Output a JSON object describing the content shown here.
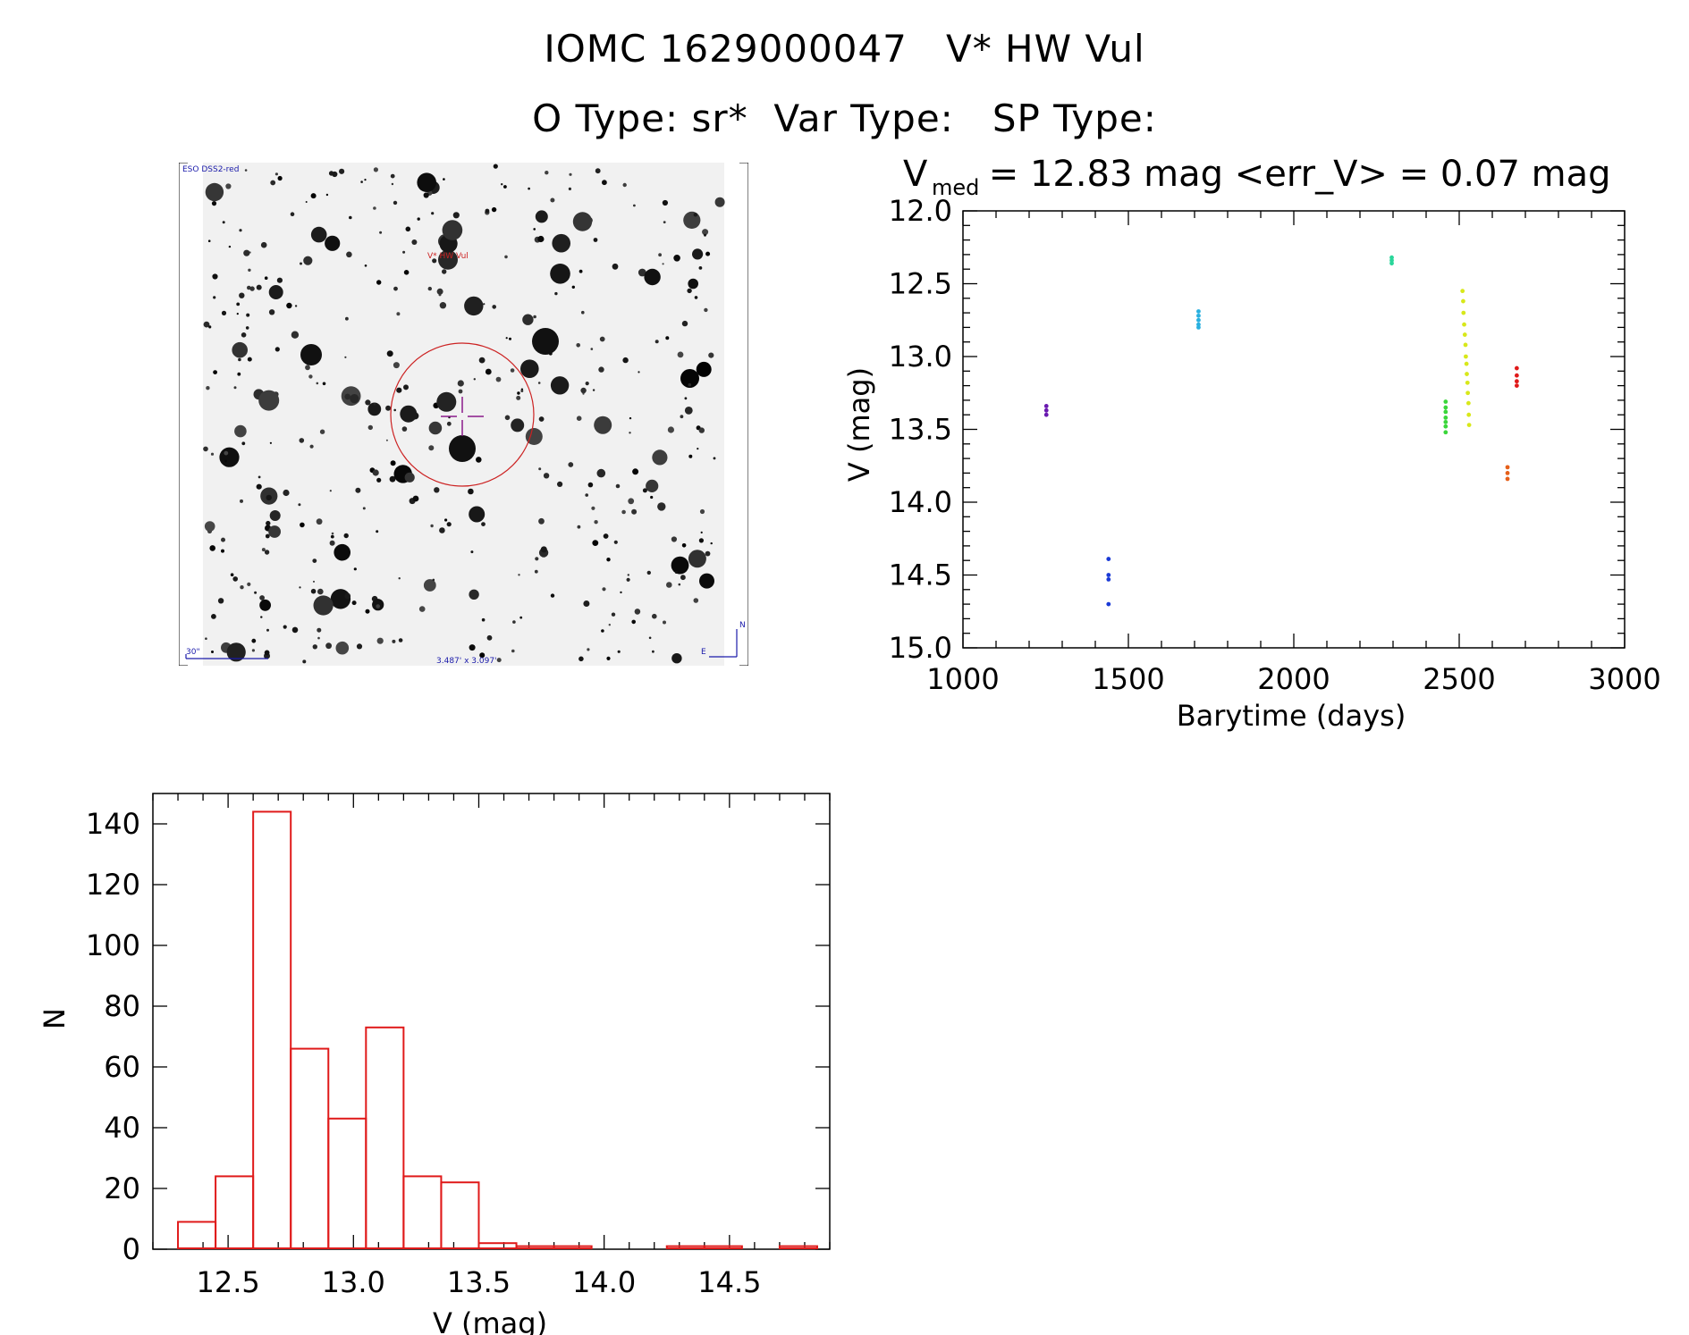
{
  "header": {
    "line1": "IOMC 1629000047   V* HW Vul",
    "line2": "O Type: sr*  Var Type:   SP Type:"
  },
  "finder_chart": {
    "survey_label": "ESO DSS2-red",
    "target_label": "V* HW Vul",
    "scale_label": "30\"",
    "size_label": "3.487' x 3.097'",
    "north_label": "N",
    "east_label": "E",
    "colors": {
      "circle": "#cc2222",
      "crosshair": "#8a1a8a",
      "labels_blue": "#1a1aaa"
    }
  },
  "chart_data": [
    {
      "type": "scatter",
      "id": "light_curve",
      "title_parts": {
        "v": "V",
        "sub": "med",
        "rest": " = 12.83 mag <err_V> = 0.07 mag"
      },
      "xlabel": "Barytime (days)",
      "ylabel": "V (mag)",
      "xlim": [
        1000,
        3000
      ],
      "ylim": [
        15.0,
        12.0
      ],
      "y_inverted": true,
      "xticks": [
        1000,
        1500,
        2000,
        2500,
        3000
      ],
      "yticks": [
        12.0,
        12.5,
        13.0,
        13.5,
        14.0,
        14.5,
        15.0
      ],
      "groups": [
        {
          "color": "#6a1ab0",
          "points": [
            [
              1252,
              13.34
            ],
            [
              1252,
              13.37
            ],
            [
              1252,
              13.4
            ]
          ]
        },
        {
          "color": "#1a3ad6",
          "points": [
            [
              1440,
              14.39
            ],
            [
              1440,
              14.5
            ],
            [
              1440,
              14.53
            ],
            [
              1440,
              14.7
            ]
          ]
        },
        {
          "color": "#29b0e0",
          "points": [
            [
              1712,
              12.69
            ],
            [
              1712,
              12.72
            ],
            [
              1712,
              12.75
            ],
            [
              1712,
              12.78
            ],
            [
              1712,
              12.8
            ]
          ]
        },
        {
          "color": "#2ad69a",
          "points": [
            [
              2296,
              12.32
            ],
            [
              2296,
              12.34
            ],
            [
              2296,
              12.36
            ]
          ]
        },
        {
          "color": "#3ad63a",
          "points": [
            [
              2459,
              13.31
            ],
            [
              2459,
              13.35
            ],
            [
              2459,
              13.38
            ],
            [
              2459,
              13.42
            ],
            [
              2459,
              13.45
            ],
            [
              2459,
              13.48
            ],
            [
              2459,
              13.52
            ]
          ]
        },
        {
          "color": "#d8e81a",
          "points": [
            [
              2510,
              12.55
            ],
            [
              2512,
              12.62
            ],
            [
              2513,
              12.7
            ],
            [
              2515,
              12.78
            ],
            [
              2517,
              12.85
            ],
            [
              2519,
              12.92
            ],
            [
              2520,
              13.0
            ],
            [
              2522,
              13.05
            ],
            [
              2523,
              13.12
            ],
            [
              2525,
              13.18
            ],
            [
              2526,
              13.25
            ],
            [
              2528,
              13.32
            ],
            [
              2529,
              13.4
            ],
            [
              2530,
              13.47
            ]
          ]
        },
        {
          "color": "#e6601a",
          "points": [
            [
              2646,
              13.76
            ],
            [
              2646,
              13.8
            ],
            [
              2646,
              13.84
            ]
          ]
        },
        {
          "color": "#e01a1a",
          "points": [
            [
              2674,
              13.08
            ],
            [
              2674,
              13.13
            ],
            [
              2674,
              13.17
            ],
            [
              2674,
              13.2
            ]
          ]
        }
      ]
    },
    {
      "type": "bar",
      "id": "histogram",
      "xlabel": "V (mag)",
      "ylabel": "N",
      "xlim": [
        12.2,
        14.9
      ],
      "ylim": [
        0,
        150
      ],
      "xticks": [
        12.5,
        13.0,
        13.5,
        14.0,
        14.5
      ],
      "yticks": [
        0,
        20,
        40,
        60,
        80,
        100,
        120,
        140
      ],
      "bin_start": 12.3,
      "bin_width": 0.15,
      "counts": [
        9,
        24,
        144,
        66,
        43,
        73,
        24,
        22,
        2,
        1,
        1,
        0,
        0,
        1,
        1,
        0,
        1
      ],
      "color": "#e01a1a"
    }
  ]
}
